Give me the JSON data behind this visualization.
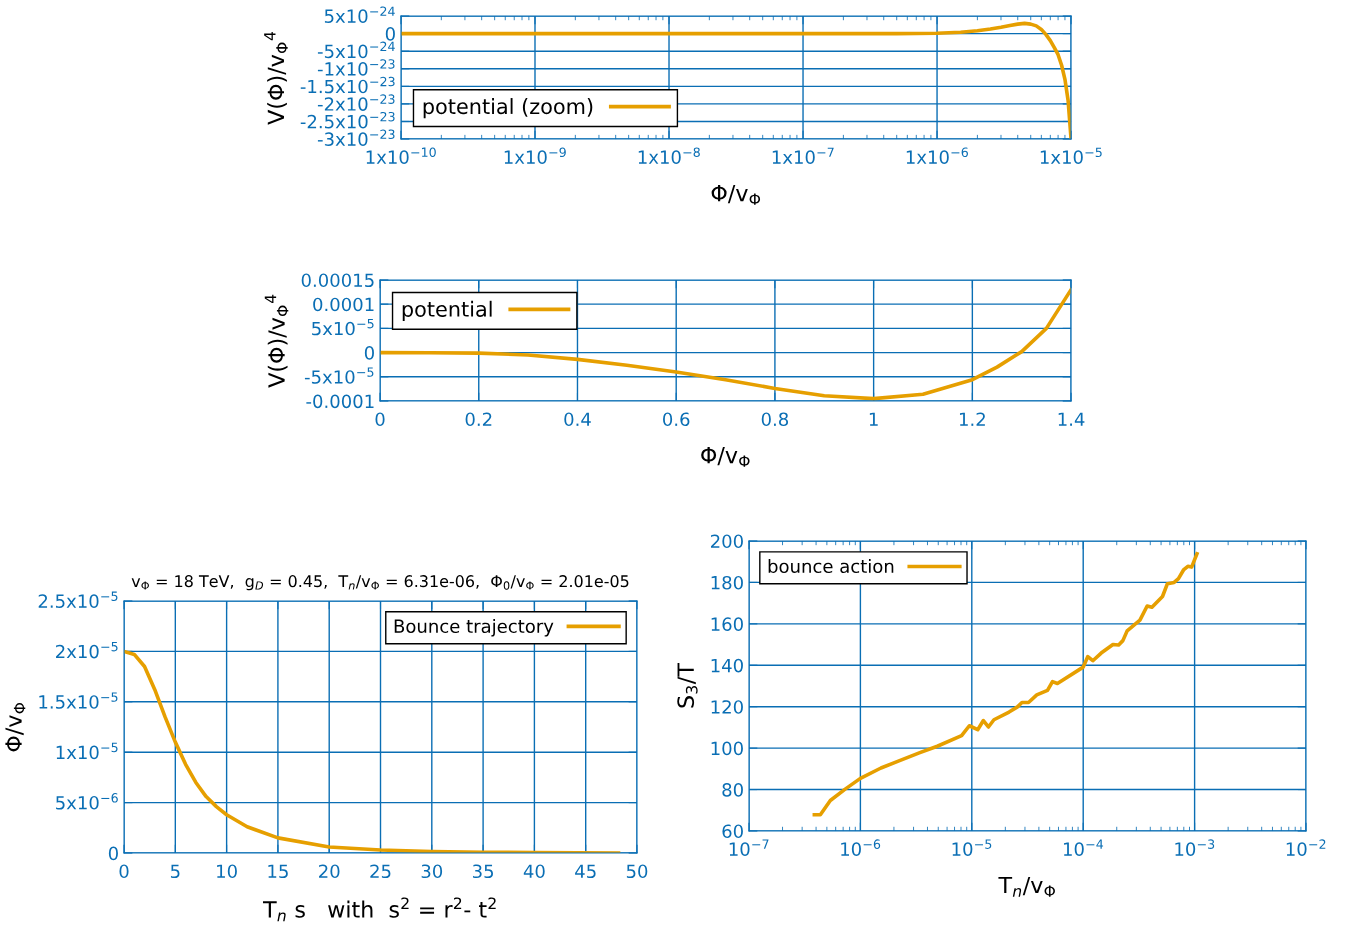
{
  "chart_data": [
    {
      "type": "line",
      "xlabel": "Φ/v$_{Φ}$",
      "ylabel": "V(Φ)/v$_{Φ}$$^{4}$",
      "log": "x",
      "grid": true,
      "legend": "bottom left",
      "x": [
        1e-10,
        1e-09,
        1e-08,
        1e-07,
        5e-07,
        1e-06,
        1.5e-06,
        2e-06,
        2.5e-06,
        3e-06,
        3.5e-06,
        4e-06,
        4.5e-06,
        5e-06,
        5.5e-06,
        6e-06,
        6.5e-06,
        7e-06,
        7.5e-06,
        8e-06,
        8.5e-06,
        9e-06,
        9.5e-06,
        1e-05
      ],
      "series": [
        {
          "name": "potential (zoom)",
          "color": "#e69f00",
          "values": [
            0,
            0,
            0,
            0,
            1e-26,
            1e-25,
            4e-25,
            8e-25,
            1.3e-24,
            1.8e-24,
            2.3e-24,
            2.7e-24,
            2.9e-24,
            2.7e-24,
            2.2e-24,
            1.2e-24,
            -3e-25,
            -2e-24,
            -4e-24,
            -6e-24,
            -9e-24,
            -1.3e-23,
            -1.9e-23,
            -3e-23
          ]
        }
      ],
      "xlim": [
        1e-10,
        1e-05
      ],
      "ylim": [
        -3e-23,
        5e-24
      ],
      "xticks": [
        {
          "value": 1e-10,
          "label": "1x10$^{−10}$"
        },
        {
          "value": 1e-09,
          "label": "1x10$^{−9}$"
        },
        {
          "value": 1e-08,
          "label": "1x10$^{−8}$"
        },
        {
          "value": 1e-07,
          "label": "1x10$^{−7}$"
        },
        {
          "value": 1e-06,
          "label": "1x10$^{−6}$"
        },
        {
          "value": 1e-05,
          "label": "1x10$^{−5}$"
        }
      ],
      "yticks": [
        {
          "value": 5e-24,
          "label": "5x10$^{−24}$"
        },
        0,
        {
          "value": -5e-24,
          "label": "-5x10$^{−24}$"
        },
        {
          "value": -1e-23,
          "label": "-1x10$^{−23}$"
        },
        {
          "value": -1.5e-23,
          "label": "-1.5x10$^{−23}$"
        },
        {
          "value": -2e-23,
          "label": "-2x10$^{−23}$"
        },
        {
          "value": -2.5e-23,
          "label": "-2.5x10$^{−23}$"
        },
        {
          "value": -3e-23,
          "label": "-3x10$^{−23}$"
        }
      ]
    },
    {
      "type": "line",
      "xlabel": "Φ/v$_{Φ}$",
      "ylabel": "V(Φ)/v$_{Φ}$$^{4}$",
      "grid": true,
      "legend": "top left",
      "x": [
        0,
        0.1,
        0.2,
        0.3,
        0.4,
        0.5,
        0.6,
        0.7,
        0.8,
        0.9,
        1.0,
        1.1,
        1.2,
        1.25,
        1.3,
        1.35,
        1.4
      ],
      "series": [
        {
          "name": "potential",
          "color": "#e69f00",
          "values": [
            0,
            -2e-07,
            -1e-06,
            -5e-06,
            -1.4e-05,
            -2.6e-05,
            -4e-05,
            -5.6e-05,
            -7.4e-05,
            -8.9e-05,
            -9.5e-05,
            -8.6e-05,
            -5.6e-05,
            -3e-05,
            2e-06,
            5e-05,
            0.00013
          ]
        }
      ],
      "xlim": [
        0,
        1.4
      ],
      "ylim": [
        -0.0001,
        0.00015
      ],
      "xticks": [
        0,
        0.2,
        0.4,
        0.6,
        0.8,
        1,
        1.2,
        1.4
      ],
      "yticks": [
        {
          "value": 0.00015,
          "label": "0.00015"
        },
        {
          "value": 0.0001,
          "label": "0.0001"
        },
        {
          "value": 5e-05,
          "label": "5x10$^{−5}$"
        },
        0,
        {
          "value": -5e-05,
          "label": "-5x10$^{−5}$"
        },
        {
          "value": -0.0001,
          "label": "-0.0001"
        }
      ]
    },
    {
      "type": "line",
      "title": "v$_{Φ}$ = 18 TeV,  g$_{D}$ = 0.45,  T$_{n}$/v$_{Φ}$ = 6.31e-06,  Φ$_{0}$/v$_{Φ}$ = 2.01e-05",
      "xlabel": "T$_{n}$ s   with  s$^{2}$ = r$^{2}$- t$^{2}$",
      "ylabel": "Φ/v$_{Φ}$",
      "grid": true,
      "legend": "top right",
      "x": [
        0,
        1,
        2,
        3,
        4,
        5,
        6,
        7,
        8,
        9,
        10,
        12,
        15,
        20,
        25,
        30,
        35,
        40,
        48.2
      ],
      "series": [
        {
          "name": "Bounce trajectory",
          "color": "#e69f00",
          "values": [
            2e-05,
            1.97e-05,
            1.85e-05,
            1.62e-05,
            1.35e-05,
            1.1e-05,
            8.8e-06,
            7e-06,
            5.6e-06,
            4.6e-06,
            3.8e-06,
            2.6e-06,
            1.5e-06,
            6e-07,
            3e-07,
            1.5e-07,
            8e-08,
            4e-08,
            1e-08
          ]
        }
      ],
      "xlim": [
        0,
        50
      ],
      "ylim": [
        0,
        2.5e-05
      ],
      "xticks": [
        0,
        5,
        10,
        15,
        20,
        25,
        30,
        35,
        40,
        45,
        50
      ],
      "yticks": [
        0,
        {
          "value": 5e-06,
          "label": "5x10$^{−6}$"
        },
        {
          "value": 1e-05,
          "label": "1x10$^{−5}$"
        },
        {
          "value": 1.5e-05,
          "label": "1.5x10$^{−5}$"
        },
        {
          "value": 2e-05,
          "label": "2x10$^{−5}$"
        },
        {
          "value": 2.5e-05,
          "label": "2.5x10$^{−5}$"
        }
      ]
    },
    {
      "type": "line",
      "xlabel": "T$_{n}$/v$_{Φ}$",
      "ylabel": "S$_{3}$/T",
      "log": "x",
      "grid": true,
      "legend": "top left",
      "x": [
        3.86e-07,
        4.37e-07,
        5.37e-07,
        7.3e-07,
        1e-06,
        1.53e-06,
        2.19e-06,
        3.42e-06,
        4.9e-06,
        8.1e-06,
        9.5e-06,
        1.13e-05,
        1.27e-05,
        1.41e-05,
        1.58e-05,
        2.16e-05,
        2.57e-05,
        2.82e-05,
        3.23e-05,
        3.83e-05,
        4.78e-05,
        5.3e-05,
        5.87e-05,
        0.0001,
        0.00011,
        0.000122,
        0.000145,
        0.000185,
        0.000208,
        0.000227,
        0.000248,
        0.000323,
        0.000375,
        0.000414,
        0.000515,
        0.00057,
        0.000655,
        0.000716,
        0.000795,
        0.00087,
        0.00094,
        0.00105
      ],
      "series": [
        {
          "name": "bounce action",
          "color": "#e69f00",
          "values": [
            67.8,
            67.8,
            74.7,
            80.2,
            85.4,
            90.4,
            93.7,
            97.8,
            100.9,
            106,
            110.8,
            108.9,
            113.3,
            110.2,
            113.7,
            117.4,
            119.9,
            122,
            122,
            125.7,
            127.9,
            132.1,
            131.2,
            139.1,
            144.2,
            142.2,
            145.9,
            150,
            149.8,
            151.9,
            156.6,
            161.8,
            168.6,
            168,
            173.2,
            179.4,
            180,
            181.8,
            186,
            187.8,
            187.4,
            193.8
          ]
        }
      ],
      "xlim": [
        1e-07,
        0.01
      ],
      "ylim": [
        60,
        200
      ],
      "xticks": [
        {
          "value": 1e-07,
          "label": "10$^{−7}$"
        },
        {
          "value": 1e-06,
          "label": "10$^{−6}$"
        },
        {
          "value": 1e-05,
          "label": "10$^{−5}$"
        },
        {
          "value": 0.0001,
          "label": "10$^{−4}$"
        },
        {
          "value": 0.001,
          "label": "10$^{−3}$"
        },
        {
          "value": 0.01,
          "label": "10$^{−2}$"
        }
      ],
      "yticks": [
        60,
        80,
        100,
        120,
        140,
        160,
        180,
        200
      ]
    }
  ]
}
